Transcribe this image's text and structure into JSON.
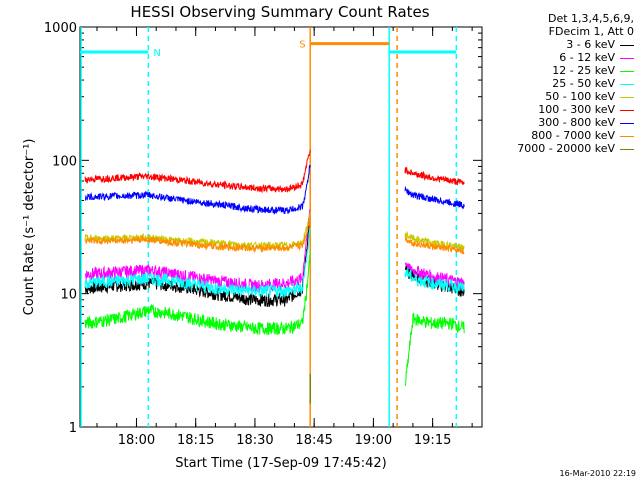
{
  "chart_data": {
    "type": "line",
    "title": "HESSI Observing Summary Count Rates",
    "xlabel": "Start Time (17-Sep-09 17:45:42)",
    "ylabel": "Count Rate (s⁻¹ detector⁻¹)",
    "y_scale": "log",
    "ylim": [
      1,
      1000
    ],
    "xlim": [
      "17:45:42",
      "19:27:30"
    ],
    "x_ticks": [
      "18:00",
      "18:15",
      "18:30",
      "18:45",
      "19:00",
      "19:15"
    ],
    "y_ticks": [
      "1",
      "10",
      "100",
      "1000"
    ],
    "legend_header": [
      "Det 1,3,4,5,6,9,",
      "FDecim 1, Att 0"
    ],
    "legend_position": "right",
    "timestamp": "16-Mar-2010 22:19",
    "series": [
      {
        "name": "3 - 6 keV",
        "color": "#000000",
        "x": [
          "17:47",
          "17:55",
          "18:03",
          "18:10",
          "18:20",
          "18:30",
          "18:38",
          "18:42",
          "18:43",
          "18:44",
          "19:08",
          "19:10",
          "19:15",
          "19:20",
          "19:23"
        ],
        "y": [
          11,
          11.5,
          12,
          11.5,
          10,
          9,
          9,
          11,
          20,
          40,
          15,
          14,
          12,
          11,
          10.5
        ]
      },
      {
        "name": "6 - 12 keV",
        "color": "#ff00ff",
        "x": [
          "17:47",
          "17:55",
          "18:03",
          "18:10",
          "18:20",
          "18:30",
          "18:38",
          "18:42",
          "18:43",
          "18:44",
          "19:08",
          "19:10",
          "19:15",
          "19:20",
          "19:23"
        ],
        "y": [
          14,
          14.5,
          15,
          14,
          12.5,
          11.5,
          12,
          13,
          25,
          45,
          17,
          15,
          13.5,
          12.5,
          12
        ]
      },
      {
        "name": "12 - 25 keV",
        "color": "#00ff00",
        "x": [
          "17:47",
          "17:55",
          "18:03",
          "18:10",
          "18:20",
          "18:30",
          "18:38",
          "18:42",
          "18:43",
          "18:44",
          "19:08",
          "19:10",
          "19:15",
          "19:20",
          "19:23"
        ],
        "y": [
          6,
          6.5,
          7.5,
          7,
          6,
          5.5,
          5.5,
          6,
          10,
          20,
          2,
          6.5,
          6,
          6,
          5.5
        ]
      },
      {
        "name": "25 - 50 keV",
        "color": "#00ffff",
        "x": [
          "17:47",
          "17:55",
          "18:03",
          "18:10",
          "18:20",
          "18:30",
          "18:38",
          "18:42",
          "18:43",
          "18:44",
          "19:08",
          "19:10",
          "19:15",
          "19:20",
          "19:23"
        ],
        "y": [
          12,
          12.5,
          13,
          12.5,
          11,
          10.5,
          10.5,
          11,
          18,
          30,
          15,
          13,
          12,
          11.5,
          11
        ]
      },
      {
        "name": "50 - 100 keV",
        "color": "#c8c800",
        "x": [
          "17:47",
          "17:55",
          "18:03",
          "18:10",
          "18:20",
          "18:30",
          "18:38",
          "18:42",
          "18:43",
          "18:44",
          "19:08",
          "19:10",
          "19:15",
          "19:20",
          "19:23"
        ],
        "y": [
          26,
          26,
          26.5,
          25,
          24,
          23,
          23,
          24,
          30,
          40,
          28,
          26,
          24,
          23,
          22
        ]
      },
      {
        "name": "100 - 300 keV",
        "color": "#ff0000",
        "x": [
          "17:47",
          "17:55",
          "18:03",
          "18:10",
          "18:20",
          "18:30",
          "18:38",
          "18:42",
          "18:43",
          "18:44",
          "19:08",
          "19:10",
          "19:15",
          "19:20",
          "19:23"
        ],
        "y": [
          72,
          74,
          76,
          72,
          66,
          62,
          61,
          66,
          90,
          120,
          85,
          80,
          74,
          70,
          68
        ]
      },
      {
        "name": "300 - 800 keV",
        "color": "#0000ff",
        "x": [
          "17:47",
          "17:55",
          "18:03",
          "18:10",
          "18:20",
          "18:30",
          "18:38",
          "18:42",
          "18:43",
          "18:44",
          "19:08",
          "19:10",
          "19:15",
          "19:20",
          "19:23"
        ],
        "y": [
          53,
          54,
          55,
          51,
          47,
          43,
          42,
          45,
          60,
          95,
          60,
          55,
          51,
          48,
          46
        ]
      },
      {
        "name": "800 - 7000 keV",
        "color": "#ff8c00",
        "x": [
          "17:47",
          "17:55",
          "18:03",
          "18:10",
          "18:20",
          "18:30",
          "18:38",
          "18:42",
          "18:43",
          "18:44",
          "19:08",
          "19:10",
          "19:15",
          "19:20",
          "19:23"
        ],
        "y": [
          25,
          25,
          25.5,
          24,
          22.5,
          22,
          22,
          23,
          28,
          38,
          26,
          24,
          22.5,
          21.5,
          21
        ]
      },
      {
        "name": "7000 - 20000 keV",
        "color": "#808000",
        "x": [
          "18:44"
        ],
        "y": [
          2.5
        ]
      }
    ],
    "flags": [
      {
        "label": "N",
        "color": "#00ffff",
        "value": 650,
        "ranges": [
          [
            "17:45:42",
            "18:03"
          ],
          [
            "19:04",
            "19:21"
          ]
        ]
      },
      {
        "label": "S",
        "color": "#ff8c00",
        "value": 750,
        "ranges": [
          [
            "18:44",
            "19:04"
          ]
        ]
      }
    ],
    "vertical_lines": [
      {
        "color": "#00ffff",
        "style": "solid",
        "x": "17:45:42"
      },
      {
        "color": "#00ffff",
        "style": "dashed",
        "x": "18:03"
      },
      {
        "color": "#ff8c00",
        "style": "solid",
        "x": "18:44"
      },
      {
        "color": "#00ffff",
        "style": "solid",
        "x": "19:04"
      },
      {
        "color": "#ff8c00",
        "style": "dashed",
        "x": "19:06"
      },
      {
        "color": "#00ffff",
        "style": "dashed",
        "x": "19:21"
      }
    ]
  }
}
